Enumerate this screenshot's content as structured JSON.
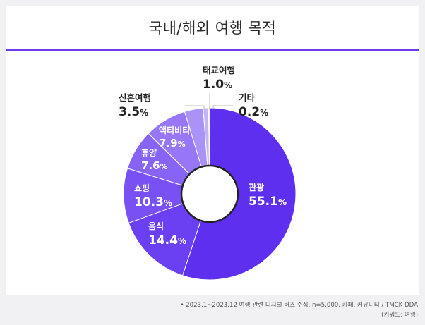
{
  "chart_data": {
    "type": "pie",
    "title": "국내/해외 여행 목적",
    "donut": true,
    "slices": [
      {
        "label": "관광",
        "value": 55.1,
        "display": "55.1",
        "color": "#5f2ff0"
      },
      {
        "label": "음식",
        "value": 14.4,
        "display": "14.4",
        "color": "#6b3ff2"
      },
      {
        "label": "쇼핑",
        "value": 10.3,
        "display": "10.3",
        "color": "#7850f3"
      },
      {
        "label": "휴양",
        "value": 7.6,
        "display": "7.6",
        "color": "#8764f5"
      },
      {
        "label": "액티비티",
        "value": 7.9,
        "display": "7.9",
        "color": "#9777f6"
      },
      {
        "label": "신혼여행",
        "value": 3.5,
        "display": "3.5",
        "color": "#ab92f7"
      },
      {
        "label": "태교여행",
        "value": 1.0,
        "display": "1.0",
        "color": "#c4b2fa"
      },
      {
        "label": "기타",
        "value": 0.2,
        "display": "0.2",
        "color": "#d9cdfc"
      }
    ],
    "unit": "%"
  },
  "notes": {
    "line1": "• 2023.1~2023.12 여행 관련 디지털 버즈 수집, n=5,000, 카페, 커뮤니티 / TMCK DDA",
    "line2": "(키워드: 여행)"
  }
}
